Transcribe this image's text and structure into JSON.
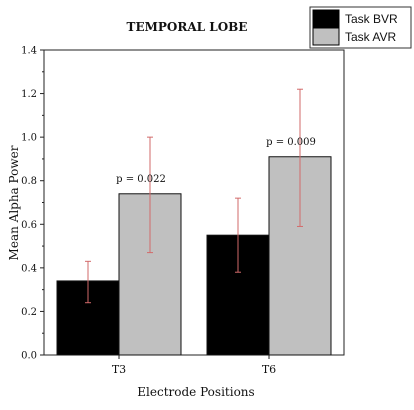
{
  "chart_data": {
    "type": "bar",
    "title": "TEMPORAL LOBE",
    "xlabel": "Electrode Positions",
    "ylabel": "Mean Alpha Power",
    "categories": [
      "T3",
      "T6"
    ],
    "ylim": [
      0.0,
      1.4
    ],
    "yticks": [
      "0.0",
      "0.2",
      "0.4",
      "0.6",
      "0.8",
      "1.0",
      "1.2",
      "1.4"
    ],
    "series": [
      {
        "name": "Task BVR",
        "values": [
          0.34,
          0.55
        ],
        "error_low": [
          0.24,
          0.38
        ],
        "error_high": [
          0.43,
          0.72
        ],
        "color": "#000000"
      },
      {
        "name": "Task AVR",
        "values": [
          0.74,
          0.91
        ],
        "error_low": [
          0.47,
          0.59
        ],
        "error_high": [
          1.0,
          1.22
        ],
        "color": "#c0c0c0"
      }
    ],
    "annotations": [
      "p = 0.022",
      "p = 0.009"
    ],
    "error_bar_color": "#d26a6a",
    "legend_position": "top-right"
  }
}
